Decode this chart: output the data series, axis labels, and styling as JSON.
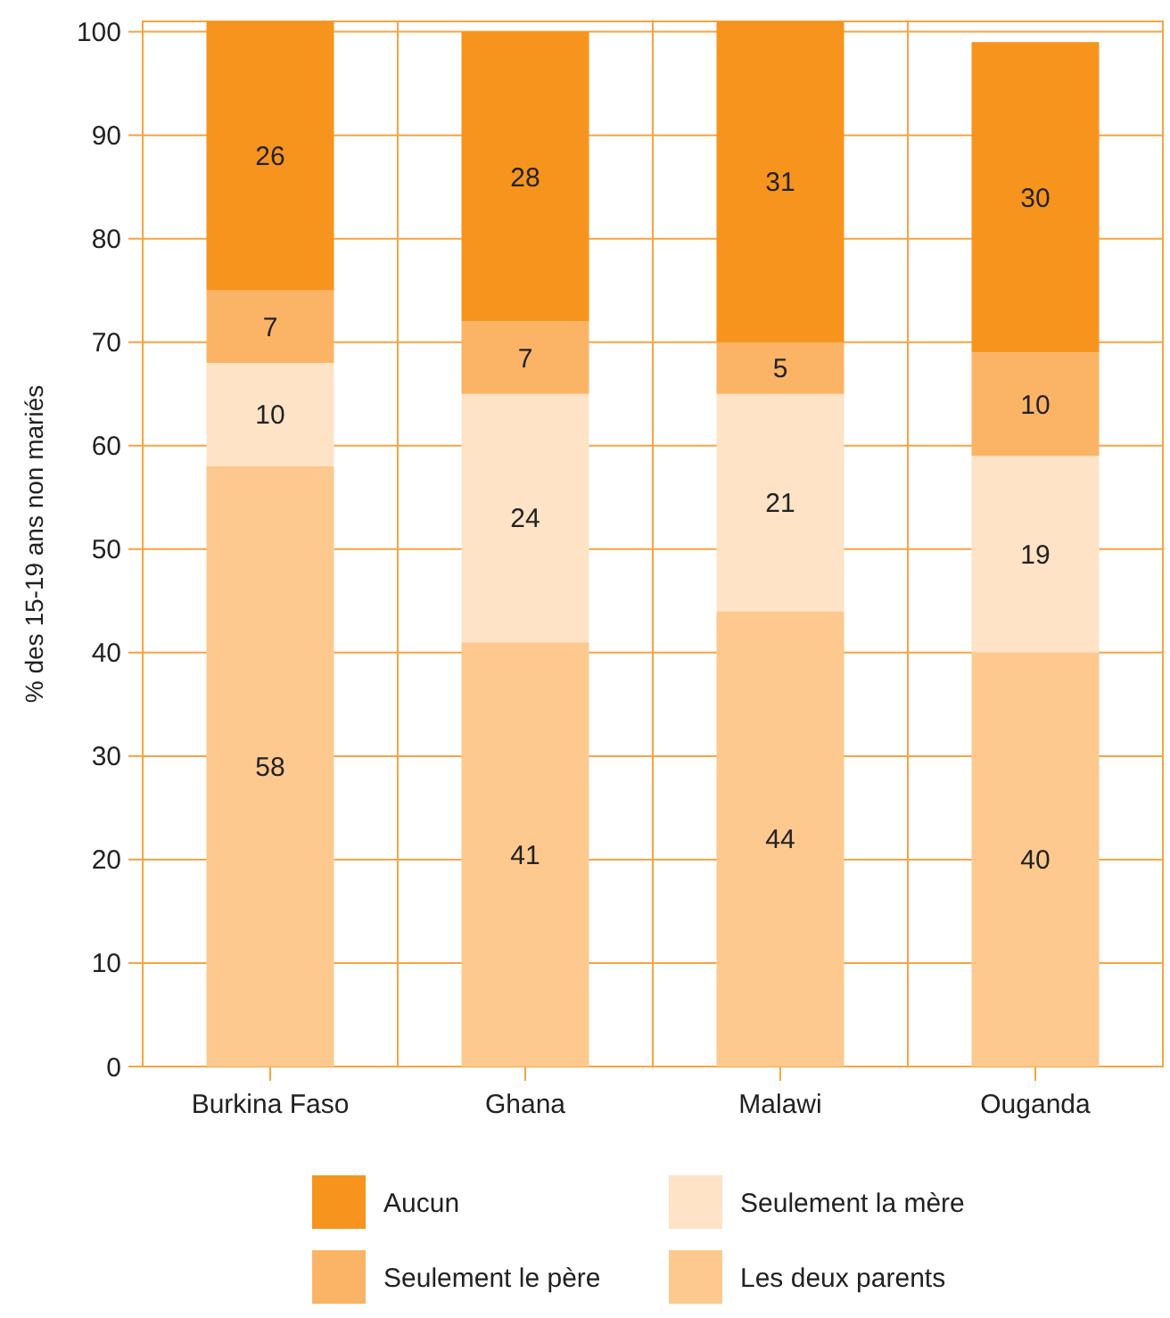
{
  "chart_data": {
    "type": "bar",
    "stacked": true,
    "ylabel": "% des 15-19 ans non mariés",
    "categories": [
      "Burkina Faso",
      "Ghana",
      "Malawi",
      "Ouganda"
    ],
    "series": [
      {
        "name": "Les deux parents",
        "color": "#fdc98f",
        "values": [
          58,
          41,
          44,
          40
        ]
      },
      {
        "name": "Seulement la mère",
        "color": "#fee3c6",
        "values": [
          10,
          24,
          21,
          19
        ]
      },
      {
        "name": "Seulement le père",
        "color": "#fbb466",
        "values": [
          7,
          7,
          5,
          10
        ]
      },
      {
        "name": "Aucun",
        "color": "#f7941d",
        "values": [
          26,
          28,
          31,
          30
        ]
      }
    ],
    "ylim": [
      0,
      101
    ],
    "yticks": [
      0,
      10,
      20,
      30,
      40,
      50,
      60,
      70,
      80,
      90,
      100
    ],
    "grid": true,
    "data_labels": true,
    "legend": "bottom"
  }
}
